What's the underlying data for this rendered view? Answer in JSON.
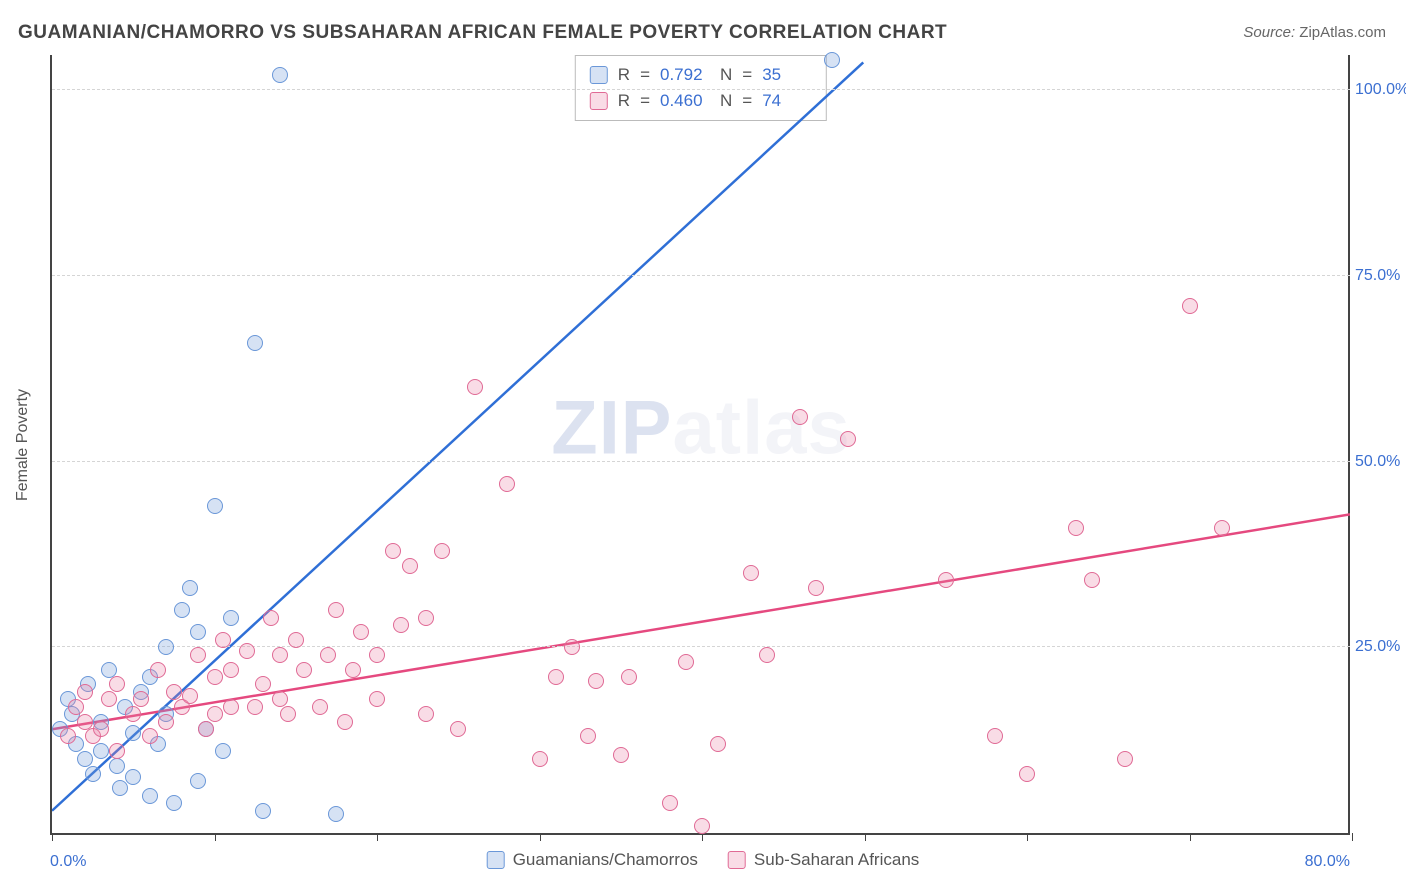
{
  "title": "GUAMANIAN/CHAMORRO VS SUBSAHARAN AFRICAN FEMALE POVERTY CORRELATION CHART",
  "source_label": "Source:",
  "source_value": "ZipAtlas.com",
  "ylabel": "Female Poverty",
  "watermark_a": "ZIP",
  "watermark_b": "atlas",
  "chart": {
    "type": "scatter",
    "xlim": [
      0,
      80
    ],
    "ylim": [
      0,
      105
    ],
    "ytick_values": [
      25,
      50,
      75,
      100
    ],
    "ytick_labels": [
      "25.0%",
      "50.0%",
      "75.0%",
      "100.0%"
    ],
    "xtick_values": [
      0,
      10,
      20,
      30,
      40,
      50,
      60,
      70,
      80
    ],
    "xtick_label_first": "0.0%",
    "xtick_label_last": "80.0%",
    "background_color": "#ffffff",
    "grid_color": "#d5d5d5",
    "axis_color": "#444444",
    "marker_radius": 8,
    "marker_border_width": 1.5,
    "series": [
      {
        "name": "Guamanians/Chamorros",
        "color_fill": "rgba(120,160,220,0.30)",
        "color_border": "#6a97d8",
        "r": "0.792",
        "n": "35",
        "trend": {
          "x1": 0,
          "y1": 3,
          "x2": 50,
          "y2": 104
        },
        "points": [
          [
            0.5,
            14
          ],
          [
            1,
            18
          ],
          [
            1.5,
            12
          ],
          [
            1.2,
            16
          ],
          [
            2,
            10
          ],
          [
            2.2,
            20
          ],
          [
            2.5,
            8
          ],
          [
            3,
            15
          ],
          [
            3.5,
            22
          ],
          [
            3,
            11
          ],
          [
            4,
            9
          ],
          [
            4.5,
            17
          ],
          [
            4.2,
            6
          ],
          [
            5,
            13.5
          ],
          [
            5.5,
            19
          ],
          [
            5,
            7.5
          ],
          [
            6,
            5
          ],
          [
            6.5,
            12
          ],
          [
            6,
            21
          ],
          [
            7,
            16
          ],
          [
            7.5,
            4
          ],
          [
            7,
            25
          ],
          [
            8,
            30
          ],
          [
            8.5,
            33
          ],
          [
            9,
            27
          ],
          [
            9,
            7
          ],
          [
            9.5,
            14
          ],
          [
            10,
            44
          ],
          [
            10.5,
            11
          ],
          [
            11,
            29
          ],
          [
            12.5,
            66
          ],
          [
            13,
            3
          ],
          [
            14,
            102
          ],
          [
            17.5,
            2.5
          ],
          [
            48,
            104
          ]
        ]
      },
      {
        "name": "Sub-Saharan Africans",
        "color_fill": "rgba(235,130,165,0.28)",
        "color_border": "#e06a95",
        "r": "0.460",
        "n": "74",
        "trend": {
          "x1": 0,
          "y1": 14,
          "x2": 80,
          "y2": 43
        },
        "points": [
          [
            1,
            13
          ],
          [
            1.5,
            17
          ],
          [
            2,
            15
          ],
          [
            2.5,
            13
          ],
          [
            2,
            19
          ],
          [
            3,
            14
          ],
          [
            3.5,
            18
          ],
          [
            4,
            11
          ],
          [
            4,
            20
          ],
          [
            5,
            16
          ],
          [
            5.5,
            18
          ],
          [
            6,
            13
          ],
          [
            6.5,
            22
          ],
          [
            7,
            15
          ],
          [
            7.5,
            19
          ],
          [
            8,
            17
          ],
          [
            8.5,
            18.5
          ],
          [
            9,
            24
          ],
          [
            9.5,
            14
          ],
          [
            10,
            21
          ],
          [
            10,
            16
          ],
          [
            10.5,
            26
          ],
          [
            11,
            17
          ],
          [
            11,
            22
          ],
          [
            12,
            24.5
          ],
          [
            12.5,
            17
          ],
          [
            13,
            20
          ],
          [
            13.5,
            29
          ],
          [
            14,
            24
          ],
          [
            14,
            18
          ],
          [
            14.5,
            16
          ],
          [
            15,
            26
          ],
          [
            15.5,
            22
          ],
          [
            16.5,
            17
          ],
          [
            17,
            24
          ],
          [
            17.5,
            30
          ],
          [
            18,
            15
          ],
          [
            18.5,
            22
          ],
          [
            19,
            27
          ],
          [
            20,
            18
          ],
          [
            20,
            24
          ],
          [
            21,
            38
          ],
          [
            21.5,
            28
          ],
          [
            22,
            36
          ],
          [
            23,
            16
          ],
          [
            23,
            29
          ],
          [
            24,
            38
          ],
          [
            25,
            14
          ],
          [
            26,
            60
          ],
          [
            28,
            47
          ],
          [
            30,
            10
          ],
          [
            31,
            21
          ],
          [
            32,
            25
          ],
          [
            33,
            13
          ],
          [
            33.5,
            20.5
          ],
          [
            35,
            10.5
          ],
          [
            35.5,
            21
          ],
          [
            38,
            4
          ],
          [
            39,
            23
          ],
          [
            40,
            1
          ],
          [
            41,
            12
          ],
          [
            43,
            35
          ],
          [
            44,
            24
          ],
          [
            46,
            56
          ],
          [
            47,
            33
          ],
          [
            49,
            53
          ],
          [
            55,
            34
          ],
          [
            58,
            13
          ],
          [
            60,
            8
          ],
          [
            63,
            41
          ],
          [
            64,
            34
          ],
          [
            66,
            10
          ],
          [
            70,
            71
          ],
          [
            72,
            41
          ]
        ]
      }
    ]
  },
  "legend_r_label": "R",
  "legend_n_label": "N",
  "legend_eq": "="
}
